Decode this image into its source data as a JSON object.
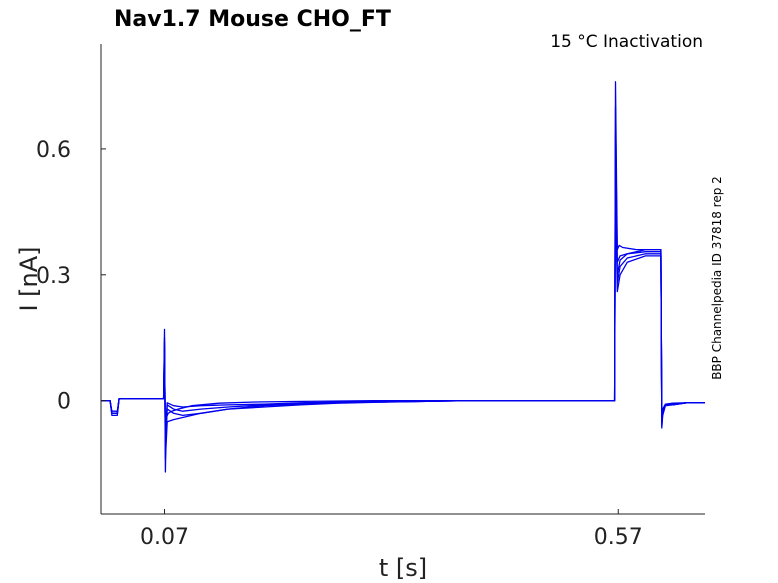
{
  "chart_data": {
    "type": "line",
    "title": "Nav1.7  Mouse  CHO_FT",
    "annotation": "15 °C  Inactivation",
    "side_label": "BBP Channelpedia ID 37818 rep 2",
    "xlabel": "t [s]",
    "ylabel": "I [nA]",
    "x_ticks": [
      0.07,
      0.57
    ],
    "x_tick_labels": [
      "0.07",
      "0.57"
    ],
    "y_ticks": [
      0,
      0.3,
      0.6
    ],
    "y_tick_labels": [
      "0",
      "0.3",
      "0.6"
    ],
    "xlim": [
      0.0,
      0.6656
    ],
    "ylim": [
      -0.27,
      0.85
    ],
    "grid": false,
    "color": "#0000ee",
    "series": [
      {
        "x": [
          0,
          0.01,
          0.012,
          0.018,
          0.02,
          0.06,
          0.069,
          0.07,
          0.071,
          0.072,
          0.074,
          0.078,
          0.085,
          0.1,
          0.13,
          0.17,
          0.21,
          0.25,
          0.3,
          0.35,
          0.4,
          0.45,
          0.5,
          0.55,
          0.566,
          0.567,
          0.568,
          0.569,
          0.571,
          0.575,
          0.59,
          0.61,
          0.617,
          0.618,
          0.619,
          0.622,
          0.63,
          0.645,
          0.6656
        ],
        "values": [
          0.0,
          0.0,
          -0.03,
          -0.03,
          0.005,
          0.005,
          0.005,
          0.17,
          -0.17,
          -0.04,
          -0.03,
          -0.025,
          -0.02,
          -0.012,
          -0.006,
          -0.003,
          -0.002,
          -0.001,
          0.0,
          0.0,
          0.0,
          0.0,
          0.0,
          0.0,
          0.0,
          0.76,
          0.55,
          0.36,
          0.37,
          0.365,
          0.36,
          0.36,
          0.36,
          -0.06,
          -0.03,
          -0.01,
          -0.01,
          -0.005,
          -0.005
        ]
      },
      {
        "x": [
          0,
          0.01,
          0.012,
          0.018,
          0.02,
          0.06,
          0.069,
          0.07,
          0.071,
          0.073,
          0.08,
          0.09,
          0.11,
          0.14,
          0.18,
          0.22,
          0.26,
          0.3,
          0.35,
          0.4,
          0.45,
          0.5,
          0.55,
          0.566,
          0.567,
          0.568,
          0.569,
          0.572,
          0.58,
          0.6,
          0.617,
          0.618,
          0.619,
          0.622,
          0.63,
          0.645,
          0.6656
        ],
        "values": [
          0.0,
          0.0,
          -0.03,
          -0.03,
          0.005,
          0.005,
          0.005,
          0.15,
          -0.14,
          -0.05,
          -0.045,
          -0.04,
          -0.03,
          -0.02,
          -0.012,
          -0.008,
          -0.005,
          -0.003,
          -0.002,
          0.0,
          0.0,
          0.0,
          0.0,
          0.0,
          0.7,
          0.5,
          0.33,
          0.345,
          0.35,
          0.355,
          0.355,
          -0.065,
          -0.035,
          -0.012,
          -0.01,
          -0.005,
          -0.005
        ]
      },
      {
        "x": [
          0,
          0.01,
          0.012,
          0.018,
          0.02,
          0.06,
          0.069,
          0.07,
          0.071,
          0.073,
          0.08,
          0.09,
          0.11,
          0.14,
          0.18,
          0.22,
          0.26,
          0.3,
          0.35,
          0.4,
          0.45,
          0.5,
          0.55,
          0.566,
          0.567,
          0.568,
          0.569,
          0.572,
          0.58,
          0.6,
          0.617,
          0.618,
          0.619,
          0.622,
          0.63,
          0.645,
          0.6656
        ],
        "values": [
          0.0,
          0.0,
          -0.035,
          -0.035,
          0.005,
          0.005,
          0.005,
          0.14,
          -0.12,
          -0.02,
          -0.03,
          -0.035,
          -0.03,
          -0.02,
          -0.015,
          -0.01,
          -0.006,
          -0.004,
          -0.002,
          0.0,
          0.0,
          0.0,
          0.0,
          0.0,
          0.64,
          0.45,
          0.3,
          0.335,
          0.35,
          0.36,
          0.36,
          -0.05,
          -0.03,
          -0.01,
          -0.01,
          -0.005,
          -0.005
        ]
      },
      {
        "x": [
          0,
          0.01,
          0.012,
          0.018,
          0.02,
          0.06,
          0.069,
          0.07,
          0.071,
          0.073,
          0.08,
          0.09,
          0.11,
          0.14,
          0.18,
          0.22,
          0.26,
          0.3,
          0.35,
          0.4,
          0.45,
          0.5,
          0.55,
          0.566,
          0.567,
          0.568,
          0.569,
          0.572,
          0.58,
          0.6,
          0.617,
          0.618,
          0.619,
          0.622,
          0.63,
          0.645,
          0.6656
        ],
        "values": [
          0.0,
          0.0,
          -0.03,
          -0.03,
          0.005,
          0.005,
          0.005,
          0.13,
          -0.1,
          -0.01,
          -0.02,
          -0.025,
          -0.02,
          -0.015,
          -0.01,
          -0.007,
          -0.004,
          -0.003,
          -0.002,
          0.0,
          0.0,
          0.0,
          0.0,
          0.0,
          0.6,
          0.42,
          0.28,
          0.32,
          0.34,
          0.35,
          0.35,
          -0.045,
          -0.025,
          -0.01,
          -0.008,
          -0.005,
          -0.005
        ]
      },
      {
        "x": [
          0,
          0.01,
          0.012,
          0.018,
          0.02,
          0.06,
          0.069,
          0.07,
          0.071,
          0.073,
          0.08,
          0.09,
          0.11,
          0.14,
          0.18,
          0.22,
          0.26,
          0.3,
          0.35,
          0.4,
          0.45,
          0.5,
          0.55,
          0.566,
          0.567,
          0.568,
          0.569,
          0.572,
          0.58,
          0.6,
          0.617,
          0.618,
          0.619,
          0.622,
          0.63,
          0.645,
          0.6656
        ],
        "values": [
          0.0,
          0.0,
          -0.025,
          -0.025,
          0.005,
          0.005,
          0.005,
          0.12,
          -0.08,
          -0.005,
          -0.012,
          -0.015,
          -0.012,
          -0.01,
          -0.008,
          -0.005,
          -0.003,
          -0.002,
          -0.001,
          0.0,
          0.0,
          0.0,
          0.0,
          0.0,
          0.55,
          0.4,
          0.26,
          0.3,
          0.33,
          0.345,
          0.345,
          -0.04,
          -0.02,
          -0.008,
          -0.006,
          -0.005,
          -0.005
        ]
      }
    ]
  }
}
